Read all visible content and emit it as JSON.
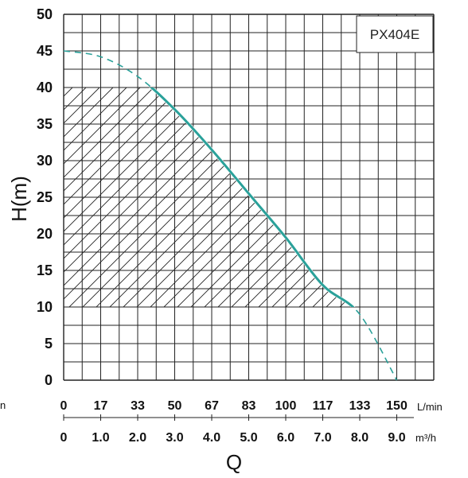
{
  "chart_data": {
    "type": "line",
    "series": [
      {
        "name": "PX404E",
        "x": [
          0,
          1.0,
          2.0,
          3.0,
          4.0,
          5.0,
          6.0,
          7.0,
          8.0,
          9.0
        ],
        "y": [
          45,
          44.2,
          41.5,
          37,
          31.5,
          25.5,
          19.5,
          13,
          9,
          0
        ]
      }
    ],
    "operating_range": {
      "x": [
        0,
        7.9
      ],
      "y": [
        10,
        40
      ]
    },
    "ylabel": "H(m)",
    "xlabel": "Q",
    "ylim": [
      0,
      50
    ],
    "xlim": [
      0,
      10
    ],
    "yticks": [
      "0",
      "5",
      "10",
      "15",
      "20",
      "25",
      "30",
      "35",
      "40",
      "45",
      "50"
    ],
    "xticks_lmin": [
      "0",
      "17",
      "33",
      "50",
      "67",
      "83",
      "100",
      "117",
      "133",
      "150"
    ],
    "xticks_m3h": [
      "0",
      "1.0",
      "2.0",
      "3.0",
      "4.0",
      "5.0",
      "6.0",
      "7.0",
      "8.0",
      "9.0"
    ],
    "unit_lmin": "L/min",
    "unit_m3h": "m³/h",
    "edge_label": "n",
    "legend": "PX404E",
    "curve_color": "#2aa19a",
    "grid": true
  }
}
